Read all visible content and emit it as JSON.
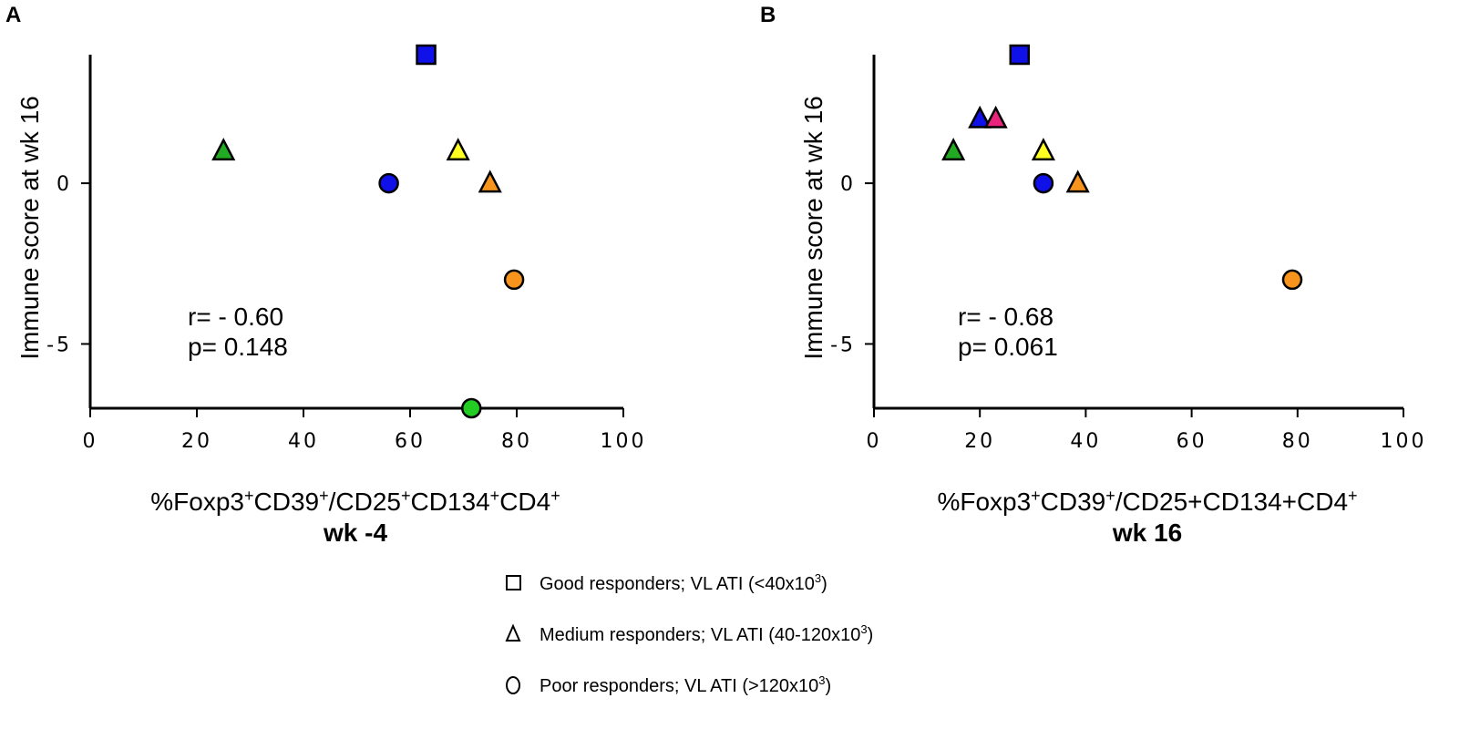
{
  "chart_data": [
    {
      "type": "scatter",
      "panel": "A",
      "ylabel": "Immune score at wk 16",
      "xlabel_main": "%Foxp3",
      "xlabel_sups": [
        "+",
        "CD39",
        "+",
        "/CD25",
        "+",
        "CD134",
        "+",
        "CD4",
        "+"
      ],
      "xlabel_sub": "wk -4",
      "xlim": [
        0,
        100
      ],
      "ylim": [
        -7,
        4
      ],
      "x_ticks": [
        0,
        20,
        40,
        60,
        80,
        100
      ],
      "y_ticks": [
        0,
        -5
      ],
      "y_tick_labels": [
        "0",
        "-5"
      ],
      "x_tick_labels": [
        "0",
        "20",
        "40",
        "60",
        "80",
        "100"
      ],
      "stats": {
        "r": "r= - 0.60",
        "p": "p= 0.148"
      },
      "points": [
        {
          "x": 63.0,
          "y": 4,
          "shape": "square",
          "color": "#1010e8"
        },
        {
          "x": 25.0,
          "y": 1,
          "shape": "triangle",
          "color": "#22aa22"
        },
        {
          "x": 69.0,
          "y": 1,
          "shape": "triangle",
          "color": "#ffff22"
        },
        {
          "x": 75.0,
          "y": 0,
          "shape": "triangle",
          "color": "#f7941d"
        },
        {
          "x": 56.0,
          "y": 0,
          "shape": "circle",
          "color": "#1010e8"
        },
        {
          "x": 79.5,
          "y": -3,
          "shape": "circle",
          "color": "#f7941d"
        },
        {
          "x": 71.5,
          "y": -7,
          "shape": "circle",
          "color": "#22cc22"
        }
      ]
    },
    {
      "type": "scatter",
      "panel": "B",
      "ylabel": "Immune score at wk 16",
      "xlabel_main": "%Foxp3",
      "xlabel_sub": "wk 16",
      "xlim": [
        0,
        100
      ],
      "ylim": [
        -7,
        4
      ],
      "x_ticks": [
        0,
        20,
        40,
        60,
        80,
        100
      ],
      "y_ticks": [
        0,
        -5
      ],
      "y_tick_labels": [
        "0",
        "-5"
      ],
      "x_tick_labels": [
        "0",
        "20",
        "40",
        "60",
        "80",
        "100"
      ],
      "stats": {
        "r": "r= - 0.68",
        "p": "p= 0.061"
      },
      "points": [
        {
          "x": 27.5,
          "y": 4,
          "shape": "square",
          "color": "#1010e8"
        },
        {
          "x": 20.0,
          "y": 2,
          "shape": "triangle",
          "color": "#1010e8"
        },
        {
          "x": 23.0,
          "y": 2,
          "shape": "triangle",
          "color": "#e8247c"
        },
        {
          "x": 15.0,
          "y": 1,
          "shape": "triangle",
          "color": "#22aa22"
        },
        {
          "x": 32.0,
          "y": 1,
          "shape": "triangle",
          "color": "#ffff22"
        },
        {
          "x": 38.5,
          "y": 0,
          "shape": "triangle",
          "color": "#f7941d"
        },
        {
          "x": 32.0,
          "y": 0,
          "shape": "circle",
          "color": "#1010e8"
        },
        {
          "x": 79.0,
          "y": -3,
          "shape": "circle",
          "color": "#f7941d"
        }
      ]
    }
  ],
  "legend": [
    {
      "shape": "square",
      "text": "Good responders; VL ATI (<40x10",
      "sup": "3",
      "tail": ")"
    },
    {
      "shape": "triangle",
      "text": "Medium responders; VL ATI (40-120x10",
      "sup": "3",
      "tail": ")"
    },
    {
      "shape": "circle",
      "text": "Poor responders; VL ATI (>120x10",
      "sup": "3",
      "tail": ")"
    }
  ]
}
